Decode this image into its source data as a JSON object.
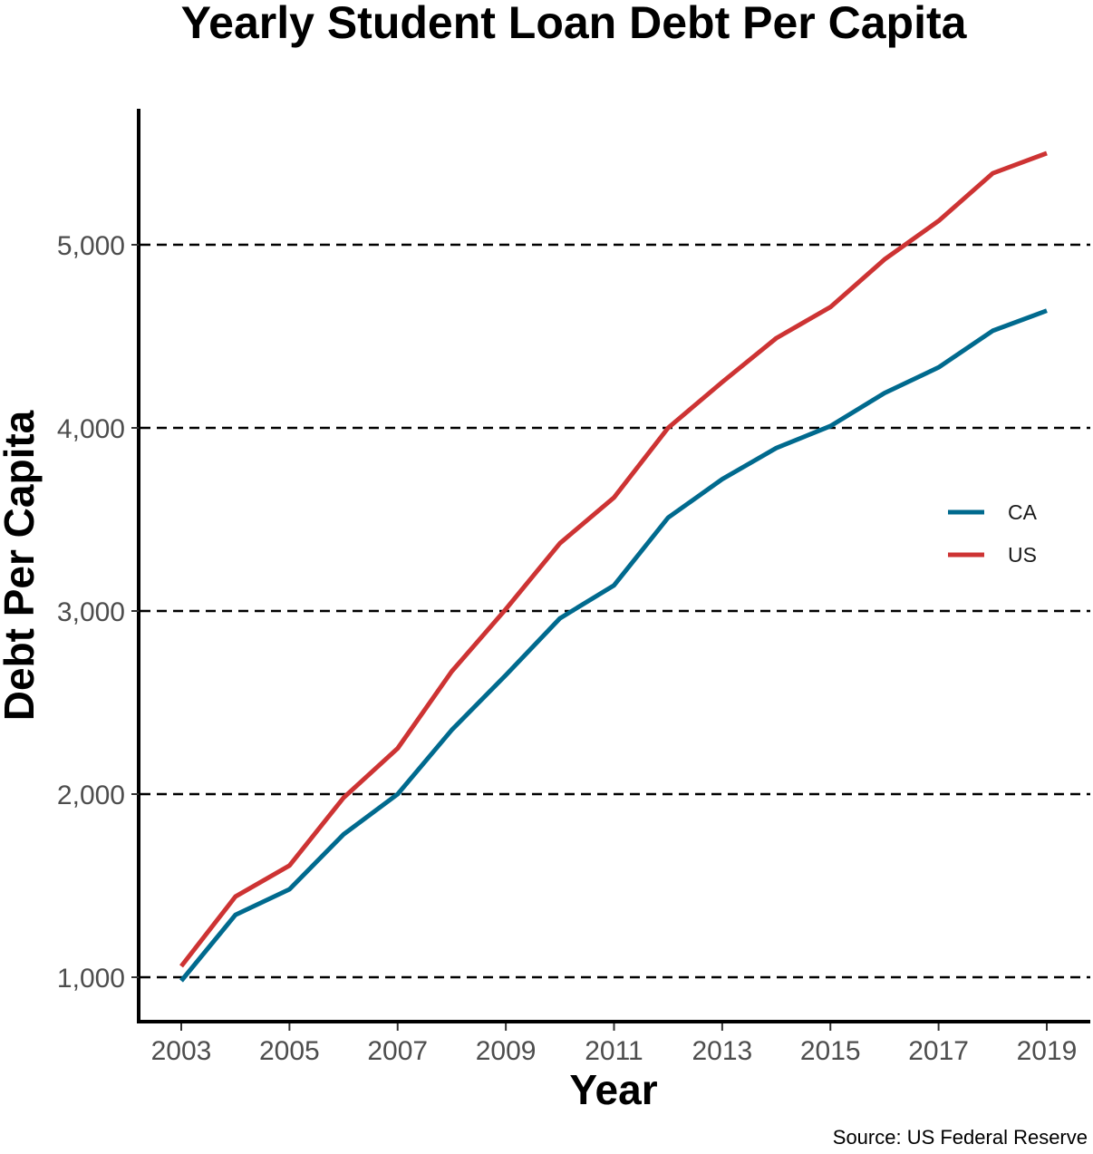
{
  "chart_data": {
    "type": "line",
    "title": "Yearly Student Loan Debt Per Capita",
    "xlabel": "Year",
    "ylabel": "Debt Per Capita",
    "caption": "Source: US Federal Reserve",
    "x": [
      2003,
      2004,
      2005,
      2006,
      2007,
      2008,
      2009,
      2010,
      2011,
      2012,
      2013,
      2014,
      2015,
      2016,
      2017,
      2018,
      2019
    ],
    "x_ticks": [
      "2003",
      "2005",
      "2007",
      "2009",
      "2011",
      "2013",
      "2015",
      "2017",
      "2019"
    ],
    "y_ticks": [
      "1,000",
      "2,000",
      "3,000",
      "4,000",
      "5,000"
    ],
    "xlim": [
      2003,
      2019
    ],
    "ylim": [
      1000,
      5500
    ],
    "grid": "dashed horizontal major lines",
    "legend_position": "right",
    "series": [
      {
        "name": "CA",
        "color": "#006a8e",
        "values": [
          980,
          1340,
          1480,
          1780,
          2000,
          2350,
          2650,
          2960,
          3140,
          3510,
          3720,
          3890,
          4010,
          4190,
          4330,
          4530,
          4640
        ]
      },
      {
        "name": "US",
        "color": "#cd3333",
        "values": [
          1060,
          1440,
          1610,
          1980,
          2250,
          2670,
          3010,
          3370,
          3620,
          4000,
          4250,
          4490,
          4660,
          4920,
          5130,
          5390,
          5500
        ]
      }
    ]
  }
}
